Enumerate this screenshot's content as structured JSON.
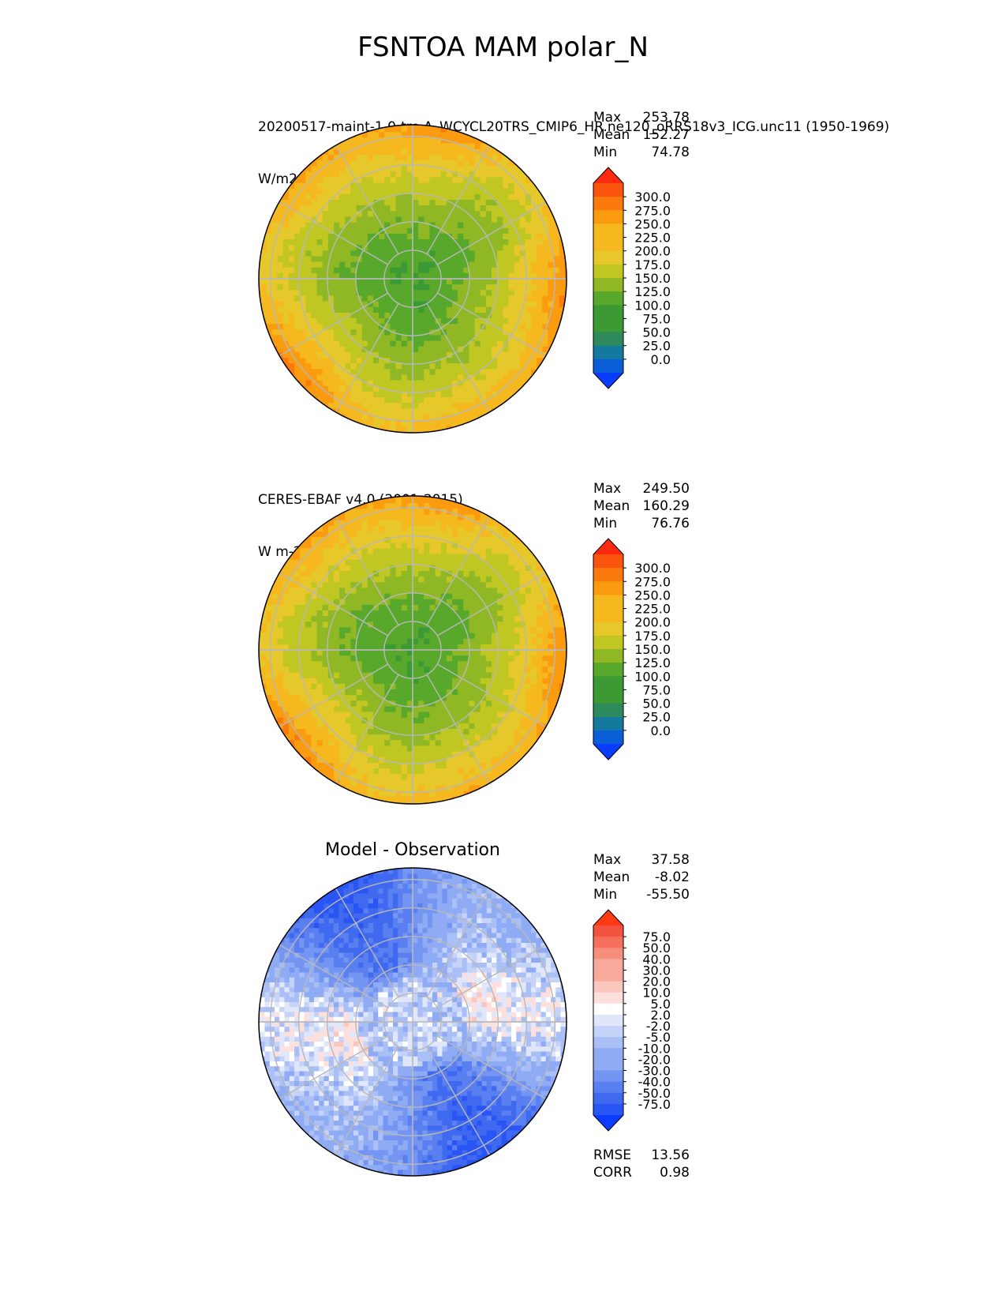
{
  "figure": {
    "title": "FSNTOA MAM polar_N"
  },
  "panels": [
    {
      "label_line1": "20200517-maint-1.0-tro.A_WCYCL20TRS_CMIP6_HR.ne120_oRRS18v3_ICG.unc11 (1950-1969)",
      "label_line2": "W/m2",
      "stats": [
        {
          "label": "Max",
          "value": "253.78"
        },
        {
          "label": "Mean",
          "value": "152.27"
        },
        {
          "label": "Min",
          "value": "74.78"
        }
      ],
      "colorbar_ticks": [
        "300.0",
        "275.0",
        "250.0",
        "225.0",
        "200.0",
        "175.0",
        "150.0",
        "125.0",
        "100.0",
        "75.0",
        "50.0",
        "25.0",
        "0.0"
      ]
    },
    {
      "label_line1": "CERES-EBAF v4.0 (2001-2015)",
      "label_line2": "W m-2",
      "stats": [
        {
          "label": "Max",
          "value": "249.50"
        },
        {
          "label": "Mean",
          "value": "160.29"
        },
        {
          "label": "Min",
          "value": "76.76"
        }
      ],
      "colorbar_ticks": [
        "300.0",
        "275.0",
        "250.0",
        "225.0",
        "200.0",
        "175.0",
        "150.0",
        "125.0",
        "100.0",
        "75.0",
        "50.0",
        "25.0",
        "0.0"
      ]
    },
    {
      "label_line1": "Model - Observation",
      "stats": [
        {
          "label": "Max",
          "value": "37.58"
        },
        {
          "label": "Mean",
          "value": "-8.02"
        },
        {
          "label": "Min",
          "value": "-55.50"
        }
      ],
      "colorbar_ticks": [
        "75.0",
        "50.0",
        "40.0",
        "30.0",
        "20.0",
        "10.0",
        "5.0",
        "2.0",
        "-2.0",
        "-5.0",
        "-10.0",
        "-20.0",
        "-30.0",
        "-40.0",
        "-50.0",
        "-75.0"
      ],
      "metrics": [
        {
          "label": "RMSE",
          "value": "13.56"
        },
        {
          "label": "CORR",
          "value": "0.98"
        }
      ]
    }
  ],
  "chart_data": [
    {
      "type": "heatmap",
      "projection": "north polar stereographic",
      "title": "20200517-maint-1.0-tro.A_WCYCL20TRS_CMIP6_HR.ne120_oRRS18v3_ICG.unc11 (1950-1969)",
      "units": "W/m2",
      "stats": {
        "max": 253.78,
        "mean": 152.27,
        "min": 74.78
      },
      "levels": [
        0,
        25,
        50,
        75,
        100,
        125,
        150,
        175,
        200,
        225,
        250,
        275,
        300
      ],
      "colors": [
        "#0a3cff",
        "#0a5fd8",
        "#137a9e",
        "#2e8a5c",
        "#3c9a35",
        "#58a82c",
        "#8fb824",
        "#c0c622",
        "#e6c82a",
        "#f5b81e",
        "#fa9b10",
        "#fb7a0e",
        "#fb540e",
        "#fb2a10"
      ],
      "center_value": 100,
      "edge_value": 225
    },
    {
      "type": "heatmap",
      "projection": "north polar stereographic",
      "title": "CERES-EBAF v4.0 (2001-2015)",
      "units": "W m-2",
      "stats": {
        "max": 249.5,
        "mean": 160.29,
        "min": 76.76
      },
      "levels": [
        0,
        25,
        50,
        75,
        100,
        125,
        150,
        175,
        200,
        225,
        250,
        275,
        300
      ],
      "colors": [
        "#0a3cff",
        "#0a5fd8",
        "#137a9e",
        "#2e8a5c",
        "#3c9a35",
        "#58a82c",
        "#8fb824",
        "#c0c622",
        "#e6c82a",
        "#f5b81e",
        "#fa9b10",
        "#fb7a0e",
        "#fb540e",
        "#fb2a10"
      ],
      "center_value": 100,
      "edge_value": 225
    },
    {
      "type": "heatmap",
      "projection": "north polar stereographic",
      "title": "Model - Observation",
      "stats": {
        "max": 37.58,
        "mean": -8.02,
        "min": -55.5,
        "rmse": 13.56,
        "corr": 0.98
      },
      "levels": [
        -75,
        -50,
        -40,
        -30,
        -20,
        -10,
        -5,
        -2,
        2,
        5,
        10,
        20,
        30,
        40,
        50,
        75
      ],
      "colors": [
        "#0b3cff",
        "#2a55f5",
        "#3f69ef",
        "#5a7ff0",
        "#7595f2",
        "#8fabf4",
        "#aabff6",
        "#c6d3f8",
        "#e0e7fb",
        "#ffffff",
        "#fde0dc",
        "#fbc6bd",
        "#f9aa9c",
        "#f78d7b",
        "#f5705c",
        "#f3523e",
        "#ff3a14"
      ]
    }
  ]
}
